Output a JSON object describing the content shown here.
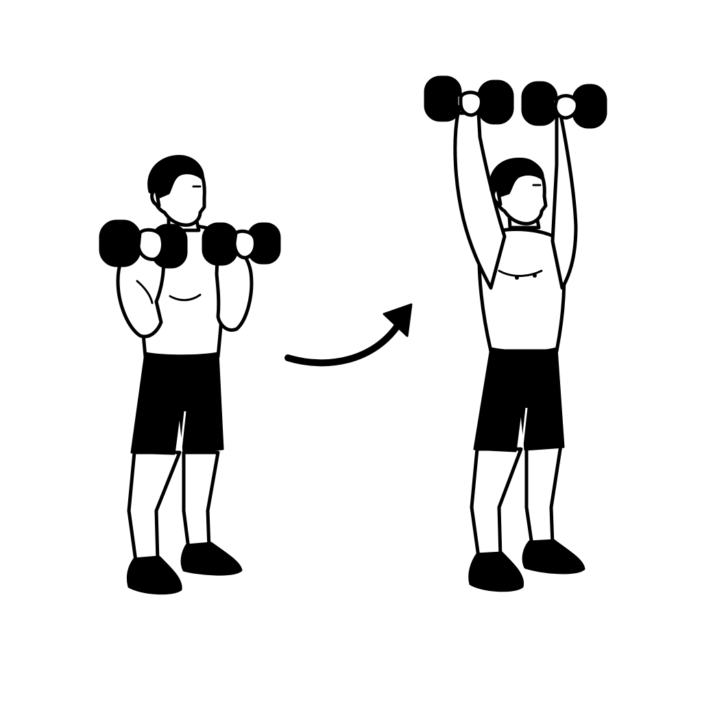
{
  "illustration": {
    "subject": "dumbbell-shoulder-press",
    "icons": [
      "start-position-figure",
      "end-position-figure",
      "movement-arrow-icon"
    ],
    "colors": {
      "ink": "#000000",
      "background": "#ffffff"
    }
  }
}
